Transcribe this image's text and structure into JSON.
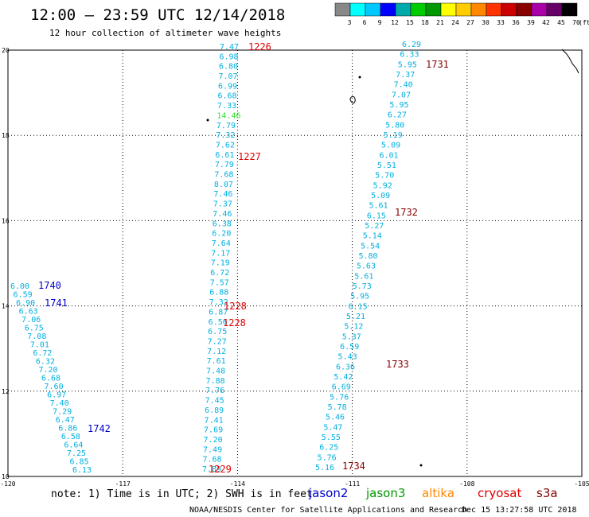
{
  "header": {
    "title": "12:00 – 23:59 UTC 12/14/2018",
    "subtitle": "12 hour collection of altimeter wave heights"
  },
  "colorbar": {
    "colors": [
      "#888888",
      "#00ffff",
      "#00c8ff",
      "#0000ff",
      "#00aaaa",
      "#00cc00",
      "#009900",
      "#ffff00",
      "#ffcc00",
      "#ff8800",
      "#ff3300",
      "#cc0000",
      "#880000",
      "#aa00aa",
      "#660066",
      "#000000"
    ],
    "labels": [
      "3",
      "6",
      "9",
      "12",
      "15",
      "18",
      "21",
      "24",
      "27",
      "30",
      "33",
      "36",
      "39",
      "42",
      "45",
      "70"
    ],
    "unit": "(ft)"
  },
  "axes": {
    "xlim": [
      -120,
      -105
    ],
    "ylim": [
      10,
      20
    ],
    "x_ticks": [
      "-120",
      "-117",
      "-114",
      "-111",
      "-108",
      "-105"
    ],
    "y_ticks": [
      "10",
      "12",
      "14",
      "16",
      "18",
      "20"
    ]
  },
  "passes": {
    "west": {
      "color": "#00b0e0",
      "values": [
        "6.00",
        "6.59",
        "6.90",
        "6.63",
        "7.06",
        "6.75",
        "7.08",
        "7.01",
        "6.72",
        "6.32",
        "7.20",
        "6.68",
        "7.60",
        "6.97",
        "7.40",
        "7.29",
        "6.47",
        "6.86",
        "6.58",
        "6.64",
        "7.25",
        "6.85",
        "6.13"
      ]
    },
    "middle": {
      "color": "#00b0e0",
      "values": [
        "7.47",
        "6.98",
        "6.80",
        "7.07",
        "6.99",
        "6.68",
        "7.33",
        "14.46",
        "7.79",
        "7.32",
        "7.62",
        "6.61",
        "7.79",
        "7.68",
        "8.07",
        "7.46",
        "7.37",
        "7.46",
        "6.38",
        "6.20",
        "7.64",
        "7.17",
        "7.19",
        "6.72",
        "7.57",
        "6.88",
        "7.32",
        "6.87",
        "6.56",
        "6.75",
        "7.27",
        "7.12",
        "7.61",
        "7.48",
        "7.88",
        "7.76",
        "7.45",
        "6.89",
        "7.41",
        "7.69",
        "7.20",
        "7.49",
        "7.68",
        "7.89"
      ]
    },
    "east": {
      "color": "#00b0e0",
      "values": [
        "6.29",
        "6.33",
        "5.95",
        "7.37",
        "7.40",
        "7.07",
        "5.95",
        "6.27",
        "5.80",
        "5.19",
        "5.09",
        "6.01",
        "5.51",
        "5.70",
        "5.92",
        "5.09",
        "5.61",
        "6.15",
        "5.27",
        "5.14",
        "5.54",
        "5.80",
        "5.63",
        "5.61",
        "5.73",
        "5.95",
        "6.15",
        "5.21",
        "5.12",
        "5.37",
        "6.59",
        "5.43",
        "6.36",
        "5.42",
        "6.69",
        "5.76",
        "5.78",
        "5.46",
        "5.47",
        "5.55",
        "6.25",
        "5.76",
        "5.16"
      ]
    }
  },
  "time_labels": {
    "jason2": {
      "color": "#0000cc",
      "values": [
        "1740",
        "1741",
        "1742"
      ]
    },
    "cryosat": {
      "color": "#dd0000",
      "values": [
        "1226",
        "1227",
        "1228",
        "1228",
        "1229"
      ]
    },
    "s3a": {
      "color": "#880000",
      "values": [
        "1731",
        "1732",
        "1733",
        "1734"
      ]
    }
  },
  "footer": {
    "note": "note:  1) Time is in UTC;  2) SWH is in feet",
    "legend": [
      {
        "name": "jason2",
        "color": "#0000cc"
      },
      {
        "name": "jason3",
        "color": "#009900"
      },
      {
        "name": "altika",
        "color": "#ff8800"
      },
      {
        "name": "cryosat",
        "color": "#dd0000"
      },
      {
        "name": "s3a",
        "color": "#880000"
      }
    ],
    "credit": "NOAA/NESDIS Center for Satellite Applications and Research",
    "timestamp": "Dec 15 13:27:58 UTC 2018"
  }
}
